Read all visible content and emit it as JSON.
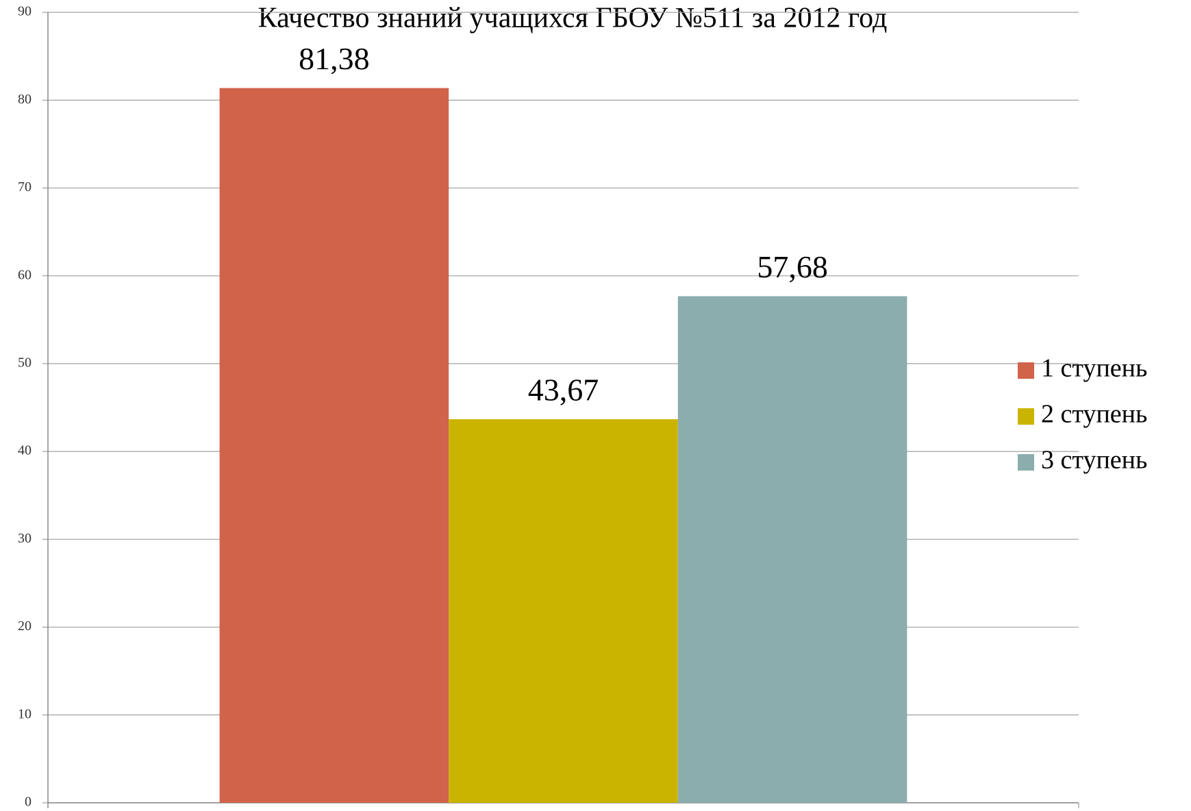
{
  "chart_data": {
    "type": "bar",
    "title": "Качество знаний учащихся ГБОУ №511 за 2012 год",
    "categories": [
      null
    ],
    "series": [
      {
        "name": "1 ступень",
        "color": "#d1634a",
        "values": [
          81.38
        ],
        "value_labels": [
          "81,38"
        ]
      },
      {
        "name": "2 ступень",
        "color": "#cbb400",
        "values": [
          43.67
        ],
        "value_labels": [
          "43,67"
        ]
      },
      {
        "name": "3 ступень",
        "color": "#8cadad",
        "values": [
          57.68
        ],
        "value_labels": [
          "57,68"
        ]
      }
    ],
    "ylim": [
      0,
      90
    ],
    "yticks": [
      0,
      10,
      20,
      30,
      40,
      50,
      60,
      70,
      80,
      90
    ],
    "grid": true,
    "legend": "right"
  }
}
